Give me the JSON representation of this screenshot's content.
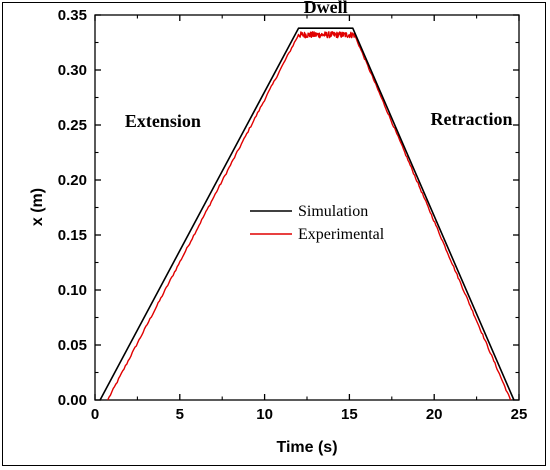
{
  "chart_data": {
    "type": "line",
    "title": "",
    "xlabel": "Time (s)",
    "ylabel": "x (m)",
    "xlim": [
      0,
      25
    ],
    "ylim": [
      0,
      0.35
    ],
    "xticks": [
      0,
      5,
      10,
      15,
      20,
      25
    ],
    "xtick_labels": [
      "0",
      "5",
      "10",
      "15",
      "20",
      "25"
    ],
    "yticks": [
      0,
      0.05,
      0.1,
      0.15,
      0.2,
      0.25,
      0.3,
      0.35
    ],
    "ytick_labels": [
      "0.00",
      "0.05",
      "0.10",
      "0.15",
      "0.20",
      "0.25",
      "0.30",
      "0.35"
    ],
    "grid": false,
    "legend_position": "center",
    "series": [
      {
        "name": "Simulation",
        "color": "#000000",
        "x": [
          0.3,
          12.0,
          15.2,
          24.7
        ],
        "y": [
          0.0,
          0.338,
          0.338,
          0.0
        ]
      },
      {
        "name": "Experimental",
        "color": "#e00000",
        "x": [
          0.75,
          12.0,
          15.3,
          24.5
        ],
        "y": [
          0.0,
          0.332,
          0.332,
          0.0
        ]
      }
    ],
    "annotations": [
      {
        "text": "Extension",
        "x": 4.0,
        "y": 0.248
      },
      {
        "text": "Dwell",
        "x": 13.6,
        "y": 0.352
      },
      {
        "text": "Retraction",
        "x": 22.2,
        "y": 0.25
      }
    ]
  }
}
